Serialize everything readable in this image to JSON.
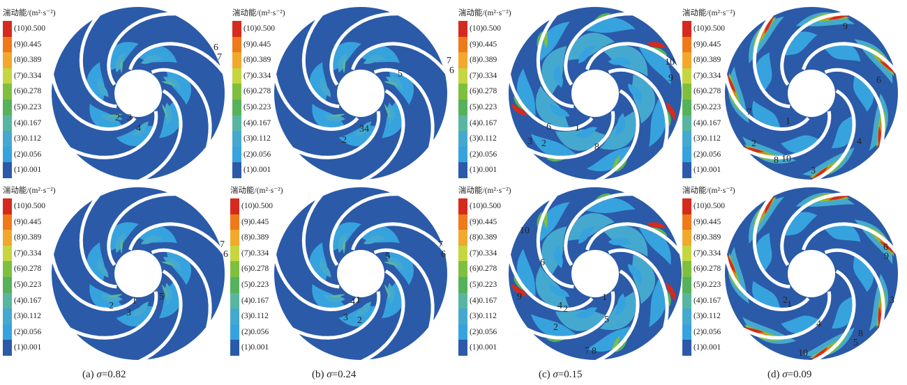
{
  "legend": {
    "title": "湍动能/(m²·s⁻²)",
    "levels": [
      {
        "label": "(10)0.500",
        "color": "#d62a1f"
      },
      {
        "label": "(9)0.445",
        "color": "#ee7a1a"
      },
      {
        "label": "(8)0.389",
        "color": "#f1a82b"
      },
      {
        "label": "(7)0.334",
        "color": "#c5d640"
      },
      {
        "label": "(6)0.278",
        "color": "#7fbf3f"
      },
      {
        "label": "(5)0.223",
        "color": "#55b25a"
      },
      {
        "label": "(4)0.167",
        "color": "#58b6a0"
      },
      {
        "label": "(3)0.112",
        "color": "#45a9cf"
      },
      {
        "label": "(2)0.056",
        "color": "#37a3de"
      },
      {
        "label": "(1)0.001",
        "color": "#2b5aa8"
      }
    ]
  },
  "captions": {
    "a": {
      "prefix": "(a) ",
      "sym": "σ",
      "value": "=0.82"
    },
    "b": {
      "prefix": "(b) ",
      "sym": "σ",
      "value": "=0.24"
    },
    "c": {
      "prefix": "(c) ",
      "sym": "σ",
      "value": "=0.15"
    },
    "d": {
      "prefix": "(d) ",
      "sym": "σ",
      "value": "=0.09"
    }
  },
  "zone_labels": {
    "a_top": [
      "6",
      "7",
      "2",
      "3",
      "4"
    ],
    "a_bottom": [
      "7",
      "6",
      "2",
      "1",
      "5",
      "3"
    ],
    "b_top": [
      "7",
      "6",
      "5",
      "34",
      "2"
    ],
    "b_bottom": [
      "7",
      "6",
      "5",
      "4",
      "1",
      "3",
      "2"
    ],
    "c_top": [
      "10",
      "9",
      "6",
      "1",
      "3",
      "2",
      "8"
    ],
    "c_bottom": [
      "10",
      "6",
      "9",
      "4",
      "2",
      "1",
      "5",
      "2",
      "7",
      "8"
    ],
    "d_top": [
      "9",
      "6",
      "7",
      "1",
      "4",
      "2",
      "8",
      "10",
      "3"
    ],
    "d_bottom": [
      "6",
      "9",
      "3",
      "2",
      "1",
      "4",
      "5",
      "8",
      "10"
    ]
  }
}
